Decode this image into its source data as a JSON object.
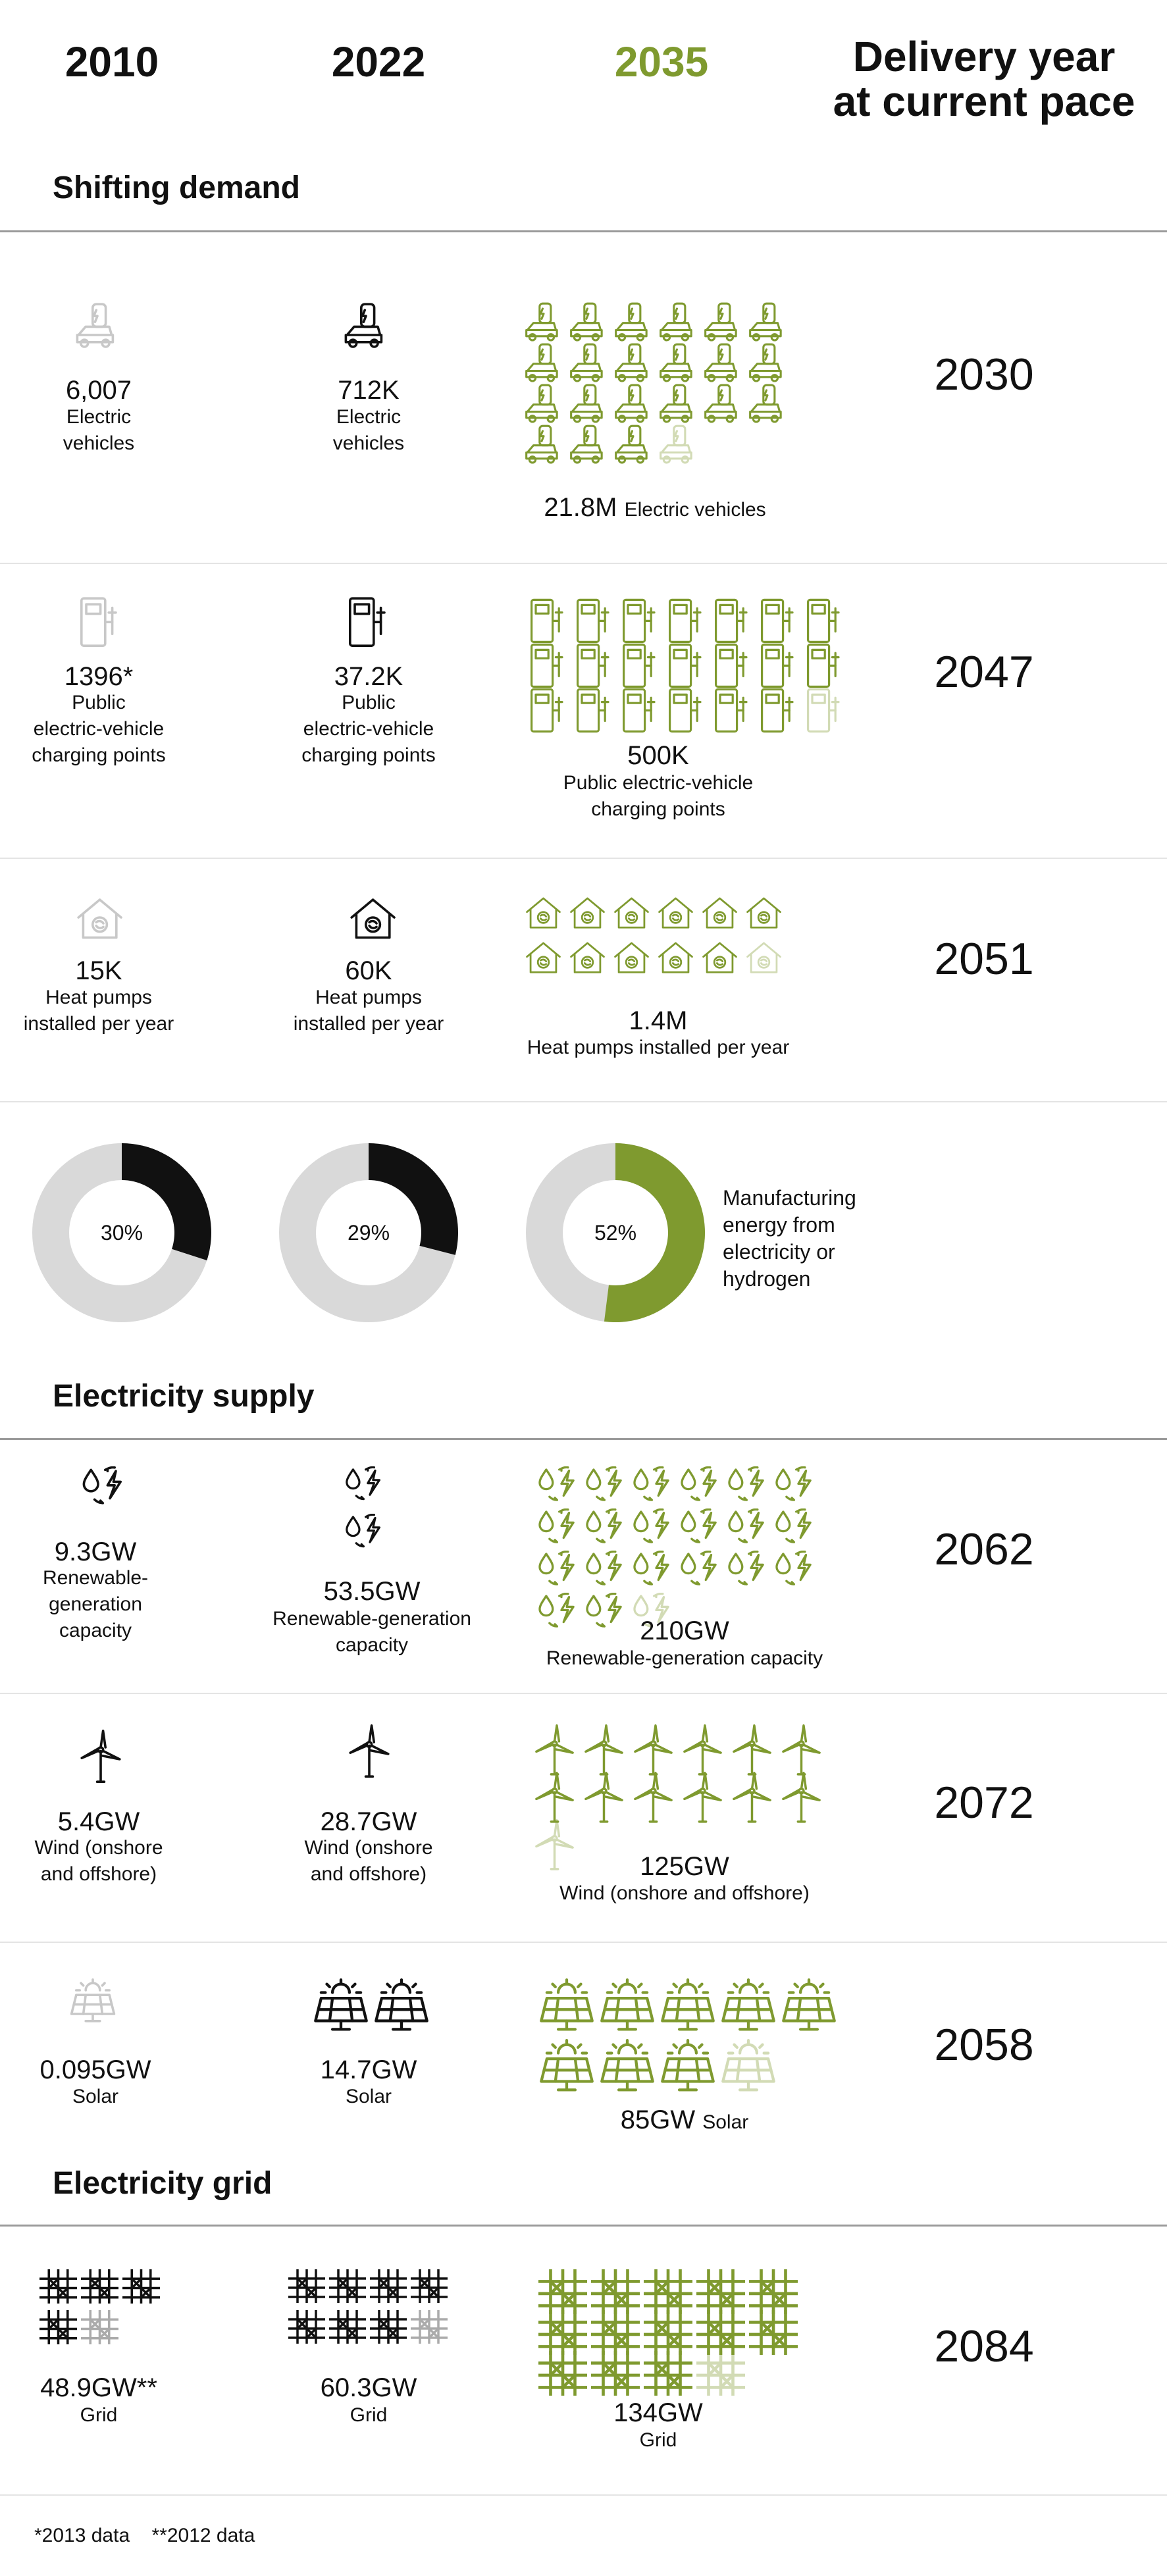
{
  "headers": {
    "c2010": "2010",
    "c2022": "2022",
    "c2035": "2035",
    "delivery_l1": "Delivery year",
    "delivery_l2": "at current pace"
  },
  "sections": {
    "demand": "Shifting demand",
    "supply": "Electricity supply",
    "grid": "Electricity grid"
  },
  "colors": {
    "accent": "#7f9a2f",
    "dark": "#111111",
    "light": "#d9d9d9",
    "rule": "#9a9a9a"
  },
  "rows": {
    "ev": {
      "icon": "electric-car-icon",
      "v2010": "6,007",
      "l2010": [
        "Electric",
        "vehicles"
      ],
      "v2022": "712K",
      "l2022": [
        "Electric",
        "vehicles"
      ],
      "v2035": "21.8M",
      "l2035": "Electric vehicles",
      "year": "2030"
    },
    "charge": {
      "icon": "charging-point-icon",
      "v2010": "1396*",
      "l2010": [
        "Public",
        "electric-vehicle",
        "charging points"
      ],
      "v2022": "37.2K",
      "l2022": [
        "Public",
        "electric-vehicle",
        "charging points"
      ],
      "v2035": "500K",
      "l2035": [
        "Public electric-vehicle",
        "charging points"
      ],
      "year": "2047"
    },
    "heat": {
      "icon": "heat-pump-house-icon",
      "v2010": "15K",
      "l2010": [
        "Heat pumps",
        "installed per year"
      ],
      "v2022": "60K",
      "l2022": [
        "Heat pumps",
        "installed per year"
      ],
      "v2035": "1.4M",
      "l2035": "Heat pumps installed per year",
      "year": "2051"
    },
    "renew": {
      "icon": "renewable-energy-icon",
      "v2010": "9.3GW",
      "l2010": [
        "Renewable-generation",
        "capacity"
      ],
      "v2022": "53.5GW",
      "l2022": [
        "Renewable-generation",
        "capacity"
      ],
      "v2035": "210GW",
      "l2035": "Renewable-generation capacity",
      "year": "2062"
    },
    "wind": {
      "icon": "wind-turbine-icon",
      "v2010": "5.4GW",
      "l2010": [
        "Wind (onshore",
        "and offshore)"
      ],
      "v2022": "28.7GW",
      "l2022": [
        "Wind (onshore",
        "and offshore)"
      ],
      "v2035": "125GW",
      "l2035": "Wind (onshore and offshore)",
      "year": "2072"
    },
    "solar": {
      "icon": "solar-panel-icon",
      "v2010": "0.095GW",
      "l2010": "Solar",
      "v2022": "14.7GW",
      "l2022": "Solar",
      "v2035": "85GW",
      "l2035": "Solar",
      "year": "2058"
    },
    "grid": {
      "icon": "grid-icon",
      "v2010": "48.9GW**",
      "l2010": "Grid",
      "v2022": "60.3GW",
      "l2022": "Grid",
      "v2035": "134GW",
      "l2035": "Grid",
      "year": "2084"
    }
  },
  "manufacturing": {
    "p2010": "30%",
    "p2022": "29%",
    "p2035": "52%",
    "label": [
      "Manufacturing",
      "energy from",
      "electricity or",
      "hydrogen"
    ]
  },
  "footnote": "*2013 data    **2012 data",
  "chart_data": {
    "type": "table",
    "columns": [
      "2010",
      "2022",
      "2035",
      "Delivery year at current pace"
    ],
    "rows": [
      {
        "metric": "Electric vehicles",
        "2010": 6007,
        "2022": 712000,
        "2035": 21800000,
        "delivery_year": 2030
      },
      {
        "metric": "Public electric-vehicle charging points",
        "2010": 1396,
        "2022": 37200,
        "2035": 500000,
        "delivery_year": 2047
      },
      {
        "metric": "Heat pumps installed per year",
        "2010": 15000,
        "2022": 60000,
        "2035": 1400000,
        "delivery_year": 2051
      },
      {
        "metric": "Manufacturing energy from electricity or hydrogen (%)",
        "2010": 30,
        "2022": 29,
        "2035": 52
      },
      {
        "metric": "Renewable-generation capacity (GW)",
        "2010": 9.3,
        "2022": 53.5,
        "2035": 210,
        "delivery_year": 2062
      },
      {
        "metric": "Wind (onshore and offshore) (GW)",
        "2010": 5.4,
        "2022": 28.7,
        "2035": 125,
        "delivery_year": 2072
      },
      {
        "metric": "Solar (GW)",
        "2010": 0.095,
        "2022": 14.7,
        "2035": 85,
        "delivery_year": 2058
      },
      {
        "metric": "Grid (GW)",
        "2010": 48.9,
        "2022": 60.3,
        "2035": 134,
        "delivery_year": 2084
      }
    ],
    "donuts": [
      {
        "category": "2010",
        "value": 30
      },
      {
        "category": "2022",
        "value": 29
      },
      {
        "category": "2035",
        "value": 52
      }
    ]
  }
}
